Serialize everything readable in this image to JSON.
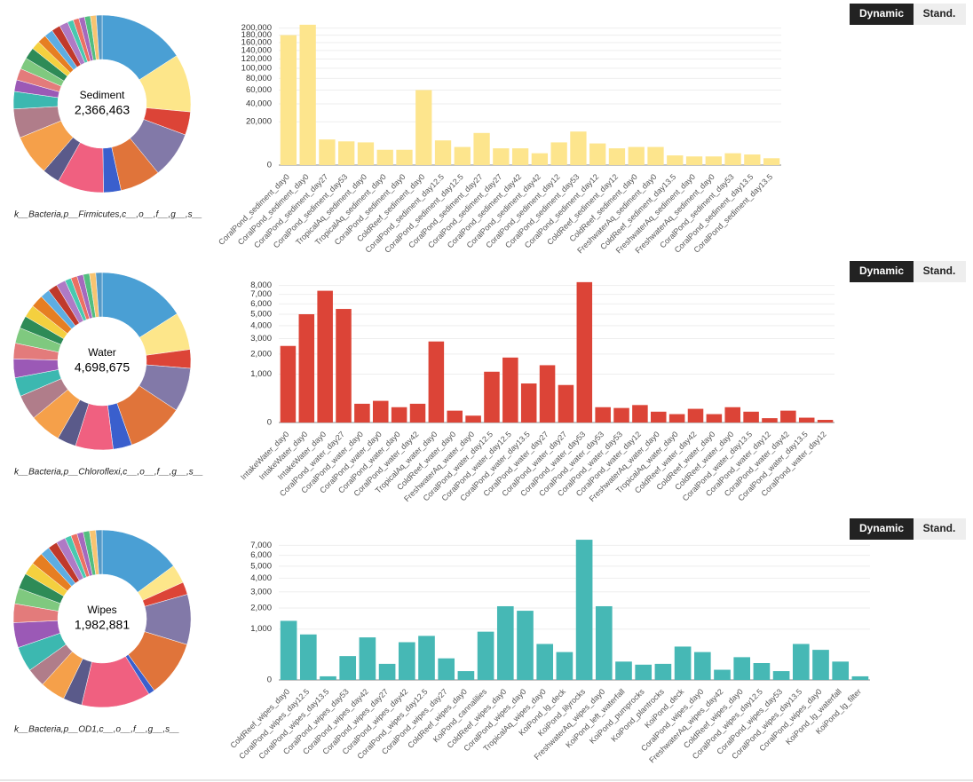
{
  "chart_data": [
    {
      "type": "pie",
      "center_label": "Sediment",
      "center_value": "2,366,463",
      "footer": "k__Bacteria,p__Firmicutes,c__,o__,f__,g__,s__",
      "values": [
        15,
        10,
        4,
        8,
        7,
        3,
        8,
        3,
        7,
        5,
        3,
        2,
        2,
        2,
        2,
        1.5,
        1.5,
        1.5,
        1.5,
        1.5,
        1,
        1,
        1,
        1,
        1,
        1
      ],
      "colors": [
        "#4a9fd4",
        "#fde68a",
        "#dc4437",
        "#8279a8",
        "#e0743a",
        "#3a5fcd",
        "#f06080",
        "#5a5a8a",
        "#f5a04a",
        "#b07d8a",
        "#3cb8b0",
        "#9b59b6",
        "#e37b7b",
        "#7fc97f",
        "#2e8b57",
        "#f4d03f",
        "#e67e22",
        "#5dade2",
        "#c0392b",
        "#af7ac5",
        "#48c9b0",
        "#ec7063",
        "#a569bd",
        "#52be80",
        "#f8c471",
        "#5499c7"
      ]
    },
    {
      "type": "bar",
      "buttons": [
        "Dynamic",
        "Stand."
      ],
      "color": "#fde58d",
      "scale": "sqrt",
      "categories": [
        "CoralPond_sediment_day0",
        "CoralPond_sediment_day0",
        "CoralPond_sediment_day27",
        "CoralPond_sediment_day53",
        "TropicalAq_sediment_day0",
        "TropicalAq_sediment_day0",
        "CoralPond_sediment_day0",
        "ColdReef_sediment_day0",
        "CoralPond_sediment_day12.5",
        "CoralPond_sediment_day12.5",
        "CoralPond_sediment_day27",
        "CoralPond_sediment_day27",
        "CoralPond_sediment_day42",
        "CoralPond_sediment_day42",
        "CoralPond_sediment_day12",
        "CoralPond_sediment_day53",
        "CoralPond_sediment_day12",
        "ColdReef_sediment_day12",
        "ColdReef_sediment_day0",
        "FreshwaterAq_sediment_day0",
        "ColdReef_sediment_day13.5",
        "FreshwaterAq_sediment_day0",
        "FreshwaterAq_sediment_day0",
        "CoralPond_sediment_day53",
        "CoralPond_sediment_day13.5",
        "CoralPond_sediment_day13.5"
      ],
      "values": [
        180000,
        210000,
        7000,
        6000,
        5500,
        2500,
        2500,
        60000,
        6500,
        3500,
        11000,
        3000,
        3000,
        1500,
        5500,
        12000,
        5000,
        3000,
        3500,
        3500,
        1000,
        800,
        800,
        1500,
        1200,
        500
      ],
      "ylim": [
        0,
        215000
      ],
      "yticks": [
        0,
        {
          "value": 20000,
          "label": "20,000"
        },
        {
          "value": 40000,
          "label": "40,000"
        },
        {
          "value": 60000,
          "label": "60,000"
        },
        {
          "value": 80000,
          "label": "80,000"
        },
        {
          "value": 100000,
          "label": "100,000"
        },
        {
          "value": 120000,
          "label": "120,000"
        },
        {
          "value": 140000,
          "label": "140,000"
        },
        {
          "value": 160000,
          "label": "160,000"
        },
        {
          "value": 180000,
          "label": "180,000"
        },
        {
          "value": 200000,
          "label": "200,000"
        }
      ],
      "grid": true
    },
    {
      "type": "pie",
      "center_label": "Water",
      "center_value": "4,698,675",
      "footer": "k__Bacteria,p__Chloroflexi,c__,o__,f__,g__,s__",
      "values": [
        14,
        6,
        3,
        7,
        9,
        3,
        6,
        3,
        5,
        4,
        3,
        3,
        2.5,
        2.5,
        2,
        2,
        2,
        1.5,
        1.5,
        1.5,
        1,
        1,
        1,
        1,
        1,
        1
      ],
      "colors": [
        "#4a9fd4",
        "#fde68a",
        "#dc4437",
        "#8279a8",
        "#e0743a",
        "#3a5fcd",
        "#f06080",
        "#5a5a8a",
        "#f5a04a",
        "#b07d8a",
        "#3cb8b0",
        "#9b59b6",
        "#e37b7b",
        "#7fc97f",
        "#2e8b57",
        "#f4d03f",
        "#e67e22",
        "#5dade2",
        "#c0392b",
        "#af7ac5",
        "#48c9b0",
        "#ec7063",
        "#a569bd",
        "#52be80",
        "#f8c471",
        "#5499c7"
      ]
    },
    {
      "type": "bar",
      "buttons": [
        "Dynamic",
        "Stand."
      ],
      "color": "#dc4437",
      "scale": "sqrt",
      "categories": [
        "IntakeWater_day0",
        "IntakeWater_day0",
        "IntakeWater_day0",
        "CoralPond_water_day27",
        "CoralPond_water_day0",
        "CoralPond_water_day0",
        "CoralPond_water_day0",
        "CoralPond_water_day42",
        "TropicalAq_water_day0",
        "ColdReef_water_day0",
        "FreshwaterAq_water_day0",
        "CoralPond_water_day12.5",
        "CoralPond_water_day12.5",
        "CoralPond_water_day13.5",
        "CoralPond_water_day27",
        "CoralPond_water_day27",
        "CoralPond_water_day53",
        "CoralPond_water_day53",
        "CoralPond_water_day53",
        "CoralPond_water_day12",
        "FreshwaterAq_water_day0",
        "TropicalAq_water_day0",
        "ColdReef_water_day42",
        "ColdReef_water_day0",
        "ColdReef_water_day0",
        "CoralPond_water_day13.5",
        "CoralPond_water_day12",
        "CoralPond_water_day42",
        "CoralPond_water_day13.5",
        "CoralPond_water_day12"
      ],
      "values": [
        2500,
        5000,
        7400,
        5500,
        150,
        200,
        100,
        150,
        2800,
        60,
        20,
        1100,
        1800,
        650,
        1400,
        600,
        8400,
        100,
        90,
        130,
        50,
        30,
        80,
        30,
        100,
        50,
        8,
        60,
        10,
        3
      ],
      "ylim": [
        0,
        8600
      ],
      "yticks": [
        0,
        {
          "value": 1000,
          "label": "1,000"
        },
        {
          "value": 2000,
          "label": "2,000"
        },
        {
          "value": 3000,
          "label": "3,000"
        },
        {
          "value": 4000,
          "label": "4,000"
        },
        {
          "value": 5000,
          "label": "5,000"
        },
        {
          "value": 6000,
          "label": "6,000"
        },
        {
          "value": 7000,
          "label": "7,000"
        },
        {
          "value": 8000,
          "label": "8,000"
        }
      ],
      "grid": true
    },
    {
      "type": "pie",
      "center_label": "Wipes",
      "center_value": "1,982,881",
      "footer": "k__Bacteria,p__OD1,c__,o__,f__,g__,s__",
      "values": [
        13,
        3,
        2,
        8,
        9,
        1,
        11,
        3,
        4,
        3,
        4,
        4,
        3,
        2.5,
        2.5,
        2,
        2,
        1.5,
        1.5,
        1.5,
        1,
        1,
        1,
        1,
        1,
        1
      ],
      "colors": [
        "#4a9fd4",
        "#fde68a",
        "#dc4437",
        "#8279a8",
        "#e0743a",
        "#3a5fcd",
        "#f06080",
        "#5a5a8a",
        "#f5a04a",
        "#b07d8a",
        "#3cb8b0",
        "#9b59b6",
        "#e37b7b",
        "#7fc97f",
        "#2e8b57",
        "#f4d03f",
        "#e67e22",
        "#5dade2",
        "#c0392b",
        "#af7ac5",
        "#48c9b0",
        "#ec7063",
        "#a569bd",
        "#52be80",
        "#f8c471",
        "#5499c7"
      ]
    },
    {
      "type": "bar",
      "buttons": [
        "Dynamic",
        "Stand."
      ],
      "color": "#46b8b5",
      "scale": "sqrt",
      "categories": [
        "ColdReef_wipes_day0",
        "CoralPond_wipes_day12.5",
        "CoralPond_wipes_day13.5",
        "CoralPond_wipes_day53",
        "CoralPond_wipes_day42",
        "CoralPond_wipes_day27",
        "CoralPond_wipes_day42",
        "CoralPond_wipes_day12.5",
        "CoralPond_wipes_day27",
        "ColdReef_wipes_day0",
        "KoiPond_cannalilies",
        "ColdReef_wipes_day0",
        "CoralPond_wipes_day0",
        "TropicalAq_wipes_day0",
        "KoiPond_lg_deck",
        "KoiPond_lilyrocks",
        "FreshwaterAq_wipes_day0",
        "KoiPond_left_waterfall",
        "KoiPond_pumprocks",
        "KoiPond_plantrocks",
        "KoiPond_deck",
        "CoralPond_wipes_day0",
        "FreshwaterAq_wipes_day42",
        "ColdReef_wipes_day0",
        "CoralPond_wipes_day12.5",
        "CoralPond_wipes_day53",
        "CoralPond_wipes_day13.5",
        "CoralPond_wipes_day0",
        "KoiPond_lg_waterfall",
        "KoiPond_lg_filter"
      ],
      "values": [
        1350,
        800,
        5,
        220,
        700,
        100,
        550,
        750,
        180,
        30,
        900,
        2100,
        1850,
        500,
        300,
        7600,
        2100,
        130,
        90,
        100,
        430,
        300,
        40,
        200,
        110,
        30,
        500,
        350,
        130,
        5
      ],
      "ylim": [
        0,
        7800
      ],
      "yticks": [
        0,
        {
          "value": 1000,
          "label": "1,000"
        },
        {
          "value": 2000,
          "label": "2,000"
        },
        {
          "value": 3000,
          "label": "3,000"
        },
        {
          "value": 4000,
          "label": "4,000"
        },
        {
          "value": 5000,
          "label": "5,000"
        },
        {
          "value": 6000,
          "label": "6,000"
        },
        {
          "value": 7000,
          "label": "7,000"
        }
      ],
      "grid": true
    }
  ]
}
